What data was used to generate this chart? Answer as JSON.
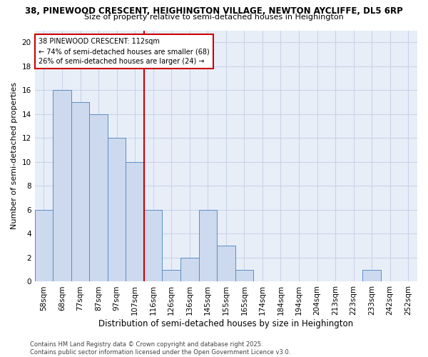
{
  "title1": "38, PINEWOOD CRESCENT, HEIGHINGTON VILLAGE, NEWTON AYCLIFFE, DL5 6RP",
  "title2": "Size of property relative to semi-detached houses in Heighington",
  "xlabel": "Distribution of semi-detached houses by size in Heighington",
  "ylabel": "Number of semi-detached properties",
  "footnote": "Contains HM Land Registry data © Crown copyright and database right 2025.\nContains public sector information licensed under the Open Government Licence v3.0.",
  "bin_labels": [
    "58sqm",
    "68sqm",
    "77sqm",
    "87sqm",
    "97sqm",
    "107sqm",
    "116sqm",
    "126sqm",
    "136sqm",
    "145sqm",
    "155sqm",
    "165sqm",
    "174sqm",
    "184sqm",
    "194sqm",
    "204sqm",
    "213sqm",
    "223sqm",
    "233sqm",
    "242sqm",
    "252sqm"
  ],
  "bar_heights": [
    6,
    16,
    15,
    14,
    12,
    10,
    6,
    1,
    2,
    6,
    3,
    1,
    0,
    0,
    0,
    0,
    0,
    0,
    1,
    0,
    0
  ],
  "bar_color": "#ccd9ee",
  "bar_edge_color": "#5b8ec4",
  "grid_color": "#c8d4e8",
  "background_color": "#ffffff",
  "chart_bg_color": "#e8eef8",
  "vline_color": "#cc0000",
  "annotation_line1": "38 PINEWOOD CRESCENT: 112sqm",
  "annotation_line2": "← 74% of semi-detached houses are smaller (68)",
  "annotation_line3": "26% of semi-detached houses are larger (24) →",
  "annotation_box_color": "#ffffff",
  "annotation_box_edge": "#cc0000",
  "ylim": [
    0,
    21
  ],
  "yticks": [
    0,
    2,
    4,
    6,
    8,
    10,
    12,
    14,
    16,
    18,
    20
  ],
  "title1_fontsize": 8.5,
  "title2_fontsize": 8.0,
  "tick_fontsize": 7.5,
  "xlabel_fontsize": 8.5,
  "ylabel_fontsize": 8.0,
  "footnote_fontsize": 6.0
}
